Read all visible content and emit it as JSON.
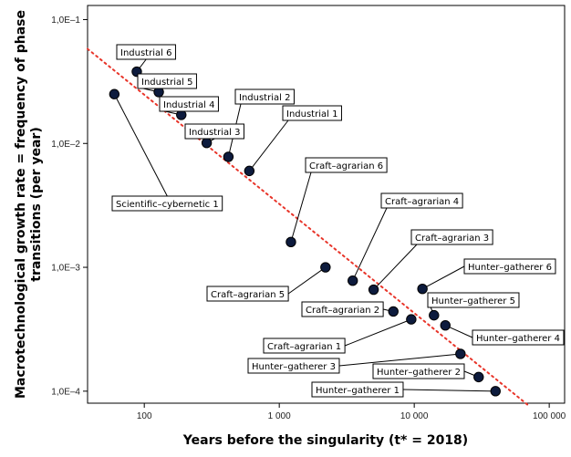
{
  "chart_data": {
    "type": "scatter",
    "xlabel": "Years before the singularity (t* = 2018)",
    "ylabel_lines": [
      "Macrotechnological growth rate = frequency of phase",
      "transitions (per year)"
    ],
    "x_scale": "log",
    "y_scale": "log",
    "xlim": [
      38,
      130000
    ],
    "ylim": [
      8e-05,
      0.13
    ],
    "x_ticks": [
      {
        "value": 100,
        "label": "100"
      },
      {
        "value": 1000,
        "label": "1 000"
      },
      {
        "value": 10000,
        "label": "10 000"
      },
      {
        "value": 100000,
        "label": "100 000"
      }
    ],
    "y_ticks": [
      {
        "value": 0.1,
        "label": "1,0E–1"
      },
      {
        "value": 0.01,
        "label": "1,0E–2"
      },
      {
        "value": 0.001,
        "label": "1,0E–3"
      },
      {
        "value": 0.0001,
        "label": "1,0E–4"
      }
    ],
    "grid": false,
    "trend_line": {
      "style": "dotted",
      "color": "#e8352a",
      "from": [
        38,
        0.058
      ],
      "to": [
        72000,
        7.5e-05
      ]
    },
    "marker_color": "#0d1b3d",
    "points": [
      {
        "label": "Scientific–cybernetic 1",
        "x": 60,
        "y": 0.025
      },
      {
        "label": "Industrial 6",
        "x": 88,
        "y": 0.038
      },
      {
        "label": "Industrial 5",
        "x": 128,
        "y": 0.026
      },
      {
        "label": "Industrial 4",
        "x": 188,
        "y": 0.017
      },
      {
        "label": "Industrial 3",
        "x": 290,
        "y": 0.0101
      },
      {
        "label": "Industrial 2",
        "x": 420,
        "y": 0.0078
      },
      {
        "label": "Industrial 1",
        "x": 600,
        "y": 0.006
      },
      {
        "label": "Craft–agrarian 6",
        "x": 1220,
        "y": 0.0016
      },
      {
        "label": "Craft–agrarian 5",
        "x": 2200,
        "y": 0.001
      },
      {
        "label": "Craft–agrarian 4",
        "x": 3500,
        "y": 0.00078
      },
      {
        "label": "Craft–agrarian 3",
        "x": 5000,
        "y": 0.00066
      },
      {
        "label": "Craft–agrarian 2",
        "x": 7000,
        "y": 0.00044
      },
      {
        "label": "Craft–agrarian 1",
        "x": 9500,
        "y": 0.00038
      },
      {
        "label": "Hunter–gatherer 6",
        "x": 11500,
        "y": 0.00067
      },
      {
        "label": "Hunter–gatherer 5",
        "x": 14000,
        "y": 0.00041
      },
      {
        "label": "Hunter–gatherer 4",
        "x": 17000,
        "y": 0.00034
      },
      {
        "label": "Hunter–gatherer 3",
        "x": 22000,
        "y": 0.0002
      },
      {
        "label": "Hunter–gatherer 2",
        "x": 30000,
        "y": 0.00013
      },
      {
        "label": "Hunter–gatherer 1",
        "x": 40000,
        "y": 0.0001
      }
    ]
  }
}
